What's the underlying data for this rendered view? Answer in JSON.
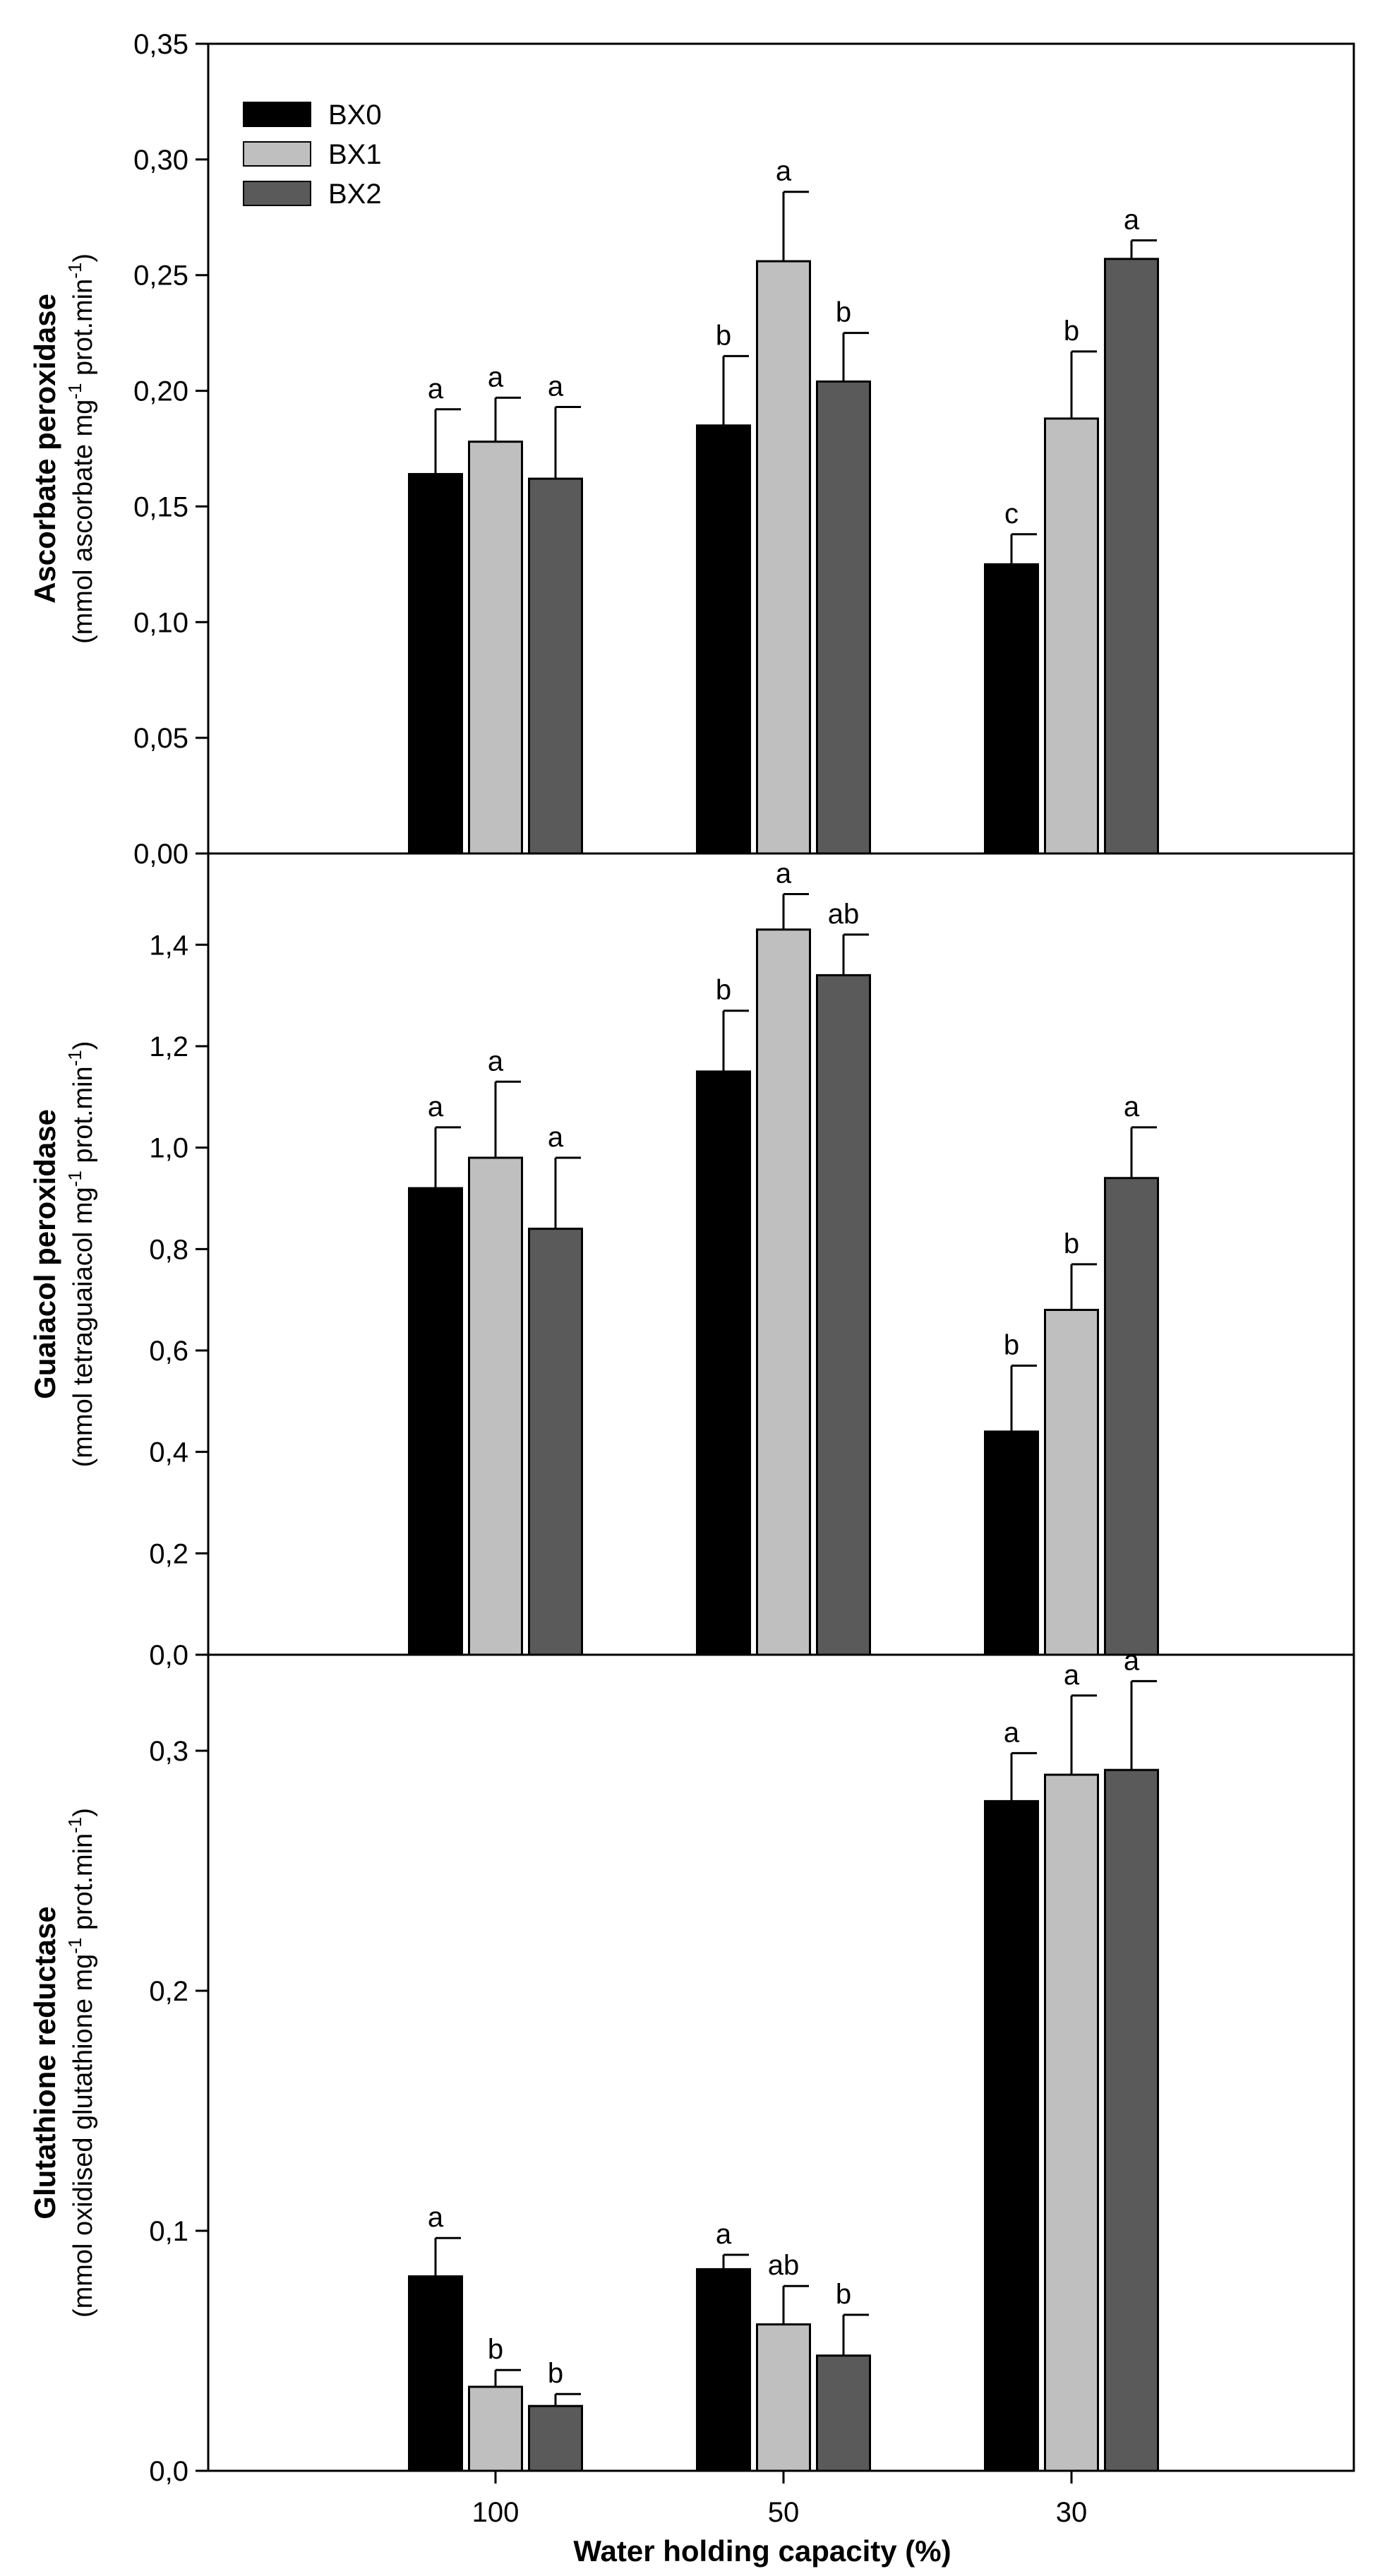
{
  "chart_data": [
    {
      "type": "bar",
      "panel": "top",
      "ylabel_bold": "Ascorbate peroxidase",
      "ylabel_unit_prefix": "(mmol ascorbate mg",
      "ylabel_unit_sup": "-1",
      "ylabel_unit_suffix": " prot.min",
      "ylabel_unit_sup2": "-1",
      "ylabel_unit_close": ")",
      "ylim": [
        0,
        0.35
      ],
      "yticks": [
        "0,00",
        "0,05",
        "0,10",
        "0,15",
        "0,20",
        "0,25",
        "0,30",
        "0,35"
      ],
      "categories": [
        "100",
        "50",
        "30"
      ],
      "series": [
        {
          "name": "BX0",
          "values": [
            0.164,
            0.185,
            0.125
          ],
          "errors": [
            0.028,
            0.03,
            0.013
          ],
          "labels": [
            "a",
            "b",
            "c"
          ]
        },
        {
          "name": "BX1",
          "values": [
            0.178,
            0.256,
            0.188
          ],
          "errors": [
            0.019,
            0.03,
            0.029
          ],
          "labels": [
            "a",
            "a",
            "b"
          ]
        },
        {
          "name": "BX2",
          "values": [
            0.162,
            0.204,
            0.257
          ],
          "errors": [
            0.031,
            0.021,
            0.008
          ],
          "labels": [
            "a",
            "b",
            "a"
          ]
        }
      ]
    },
    {
      "type": "bar",
      "panel": "middle",
      "ylabel_bold": "Guaiacol peroxidase",
      "ylabel_unit_prefix": "(mmol tetraguaiacol mg",
      "ylabel_unit_sup": "-1",
      "ylabel_unit_suffix": " prot.min",
      "ylabel_unit_sup2": "-1",
      "ylabel_unit_close": ")",
      "ylim": [
        0,
        1.58
      ],
      "yticks": [
        "0,0",
        "0,2",
        "0,4",
        "0,6",
        "0,8",
        "1,0",
        "1,2",
        "1,4"
      ],
      "categories": [
        "100",
        "50",
        "30"
      ],
      "series": [
        {
          "name": "BX0",
          "values": [
            0.92,
            1.15,
            0.44
          ],
          "errors": [
            0.12,
            0.12,
            0.13
          ],
          "labels": [
            "a",
            "b",
            "b"
          ]
        },
        {
          "name": "BX1",
          "values": [
            0.98,
            1.43,
            0.68
          ],
          "errors": [
            0.15,
            0.07,
            0.09
          ],
          "labels": [
            "a",
            "a",
            "b"
          ]
        },
        {
          "name": "BX2",
          "values": [
            0.84,
            1.34,
            0.94
          ],
          "errors": [
            0.14,
            0.08,
            0.1
          ],
          "labels": [
            "a",
            "ab",
            "a"
          ]
        }
      ]
    },
    {
      "type": "bar",
      "panel": "bottom",
      "ylabel_bold": "Glutathione reductase",
      "ylabel_unit_prefix": "(mmol oxidised glutathione mg",
      "ylabel_unit_sup": "-1",
      "ylabel_unit_suffix": " prot.min",
      "ylabel_unit_sup2": "-1",
      "ylabel_unit_close": ")",
      "ylim": [
        0,
        0.34
      ],
      "yticks": [
        "0,0",
        "0,1",
        "0,2",
        "0,3"
      ],
      "categories": [
        "100",
        "50",
        "30"
      ],
      "series": [
        {
          "name": "BX0",
          "values": [
            0.081,
            0.084,
            0.279
          ],
          "errors": [
            0.016,
            0.006,
            0.02
          ],
          "labels": [
            "a",
            "a",
            "a"
          ]
        },
        {
          "name": "BX1",
          "values": [
            0.035,
            0.061,
            0.29
          ],
          "errors": [
            0.007,
            0.016,
            0.033
          ],
          "labels": [
            "b",
            "ab",
            "a"
          ]
        },
        {
          "name": "BX2",
          "values": [
            0.027,
            0.048,
            0.292
          ],
          "errors": [
            0.005,
            0.017,
            0.037
          ],
          "labels": [
            "b",
            "b",
            "a"
          ]
        }
      ]
    }
  ],
  "legend": [
    {
      "name": "BX0",
      "color": "#000000"
    },
    {
      "name": "BX1",
      "color": "#bfbfbf"
    },
    {
      "name": "BX2",
      "color": "#5a5a5a"
    }
  ],
  "series_colors": [
    "#000000",
    "#bfbfbf",
    "#5a5a5a"
  ],
  "xlabel": "Water holding capacity (%)"
}
